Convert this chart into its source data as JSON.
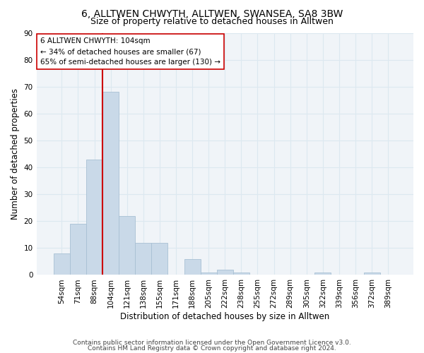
{
  "title": "6, ALLTWEN CHWYTH, ALLTWEN, SWANSEA, SA8 3BW",
  "subtitle": "Size of property relative to detached houses in Alltwen",
  "xlabel": "Distribution of detached houses by size in Alltwen",
  "ylabel": "Number of detached properties",
  "bar_color": "#c9d9e8",
  "bar_edge_color": "#a8c0d4",
  "categories": [
    "54sqm",
    "71sqm",
    "88sqm",
    "104sqm",
    "121sqm",
    "138sqm",
    "155sqm",
    "171sqm",
    "188sqm",
    "205sqm",
    "222sqm",
    "238sqm",
    "255sqm",
    "272sqm",
    "289sqm",
    "305sqm",
    "322sqm",
    "339sqm",
    "356sqm",
    "372sqm",
    "389sqm"
  ],
  "values": [
    8,
    19,
    43,
    68,
    22,
    12,
    12,
    0,
    6,
    1,
    2,
    1,
    0,
    0,
    0,
    0,
    1,
    0,
    0,
    1,
    0
  ],
  "vline_index": 3,
  "vline_color": "#cc0000",
  "annotation_text": "6 ALLTWEN CHWYTH: 104sqm\n← 34% of detached houses are smaller (67)\n65% of semi-detached houses are larger (130) →",
  "annotation_box_color": "white",
  "annotation_box_edgecolor": "#cc0000",
  "ylim": [
    0,
    90
  ],
  "yticks": [
    0,
    10,
    20,
    30,
    40,
    50,
    60,
    70,
    80,
    90
  ],
  "footer_line1": "Contains HM Land Registry data © Crown copyright and database right 2024.",
  "footer_line2": "Contains public sector information licensed under the Open Government Licence v3.0.",
  "title_fontsize": 10,
  "subtitle_fontsize": 9,
  "label_fontsize": 8.5,
  "tick_fontsize": 7.5,
  "footer_fontsize": 6.5,
  "annotation_fontsize": 7.5,
  "grid_color": "#dce8f0",
  "background_color": "#f0f4f8"
}
